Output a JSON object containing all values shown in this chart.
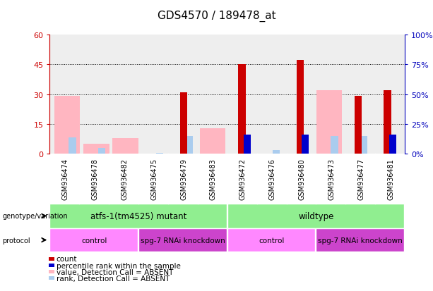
{
  "title": "GDS4570 / 189478_at",
  "samples": [
    "GSM936474",
    "GSM936478",
    "GSM936482",
    "GSM936475",
    "GSM936479",
    "GSM936483",
    "GSM936472",
    "GSM936476",
    "GSM936480",
    "GSM936473",
    "GSM936477",
    "GSM936481"
  ],
  "count_red": [
    0,
    0,
    0,
    0,
    31,
    0,
    45,
    0,
    47,
    0,
    29,
    32
  ],
  "count_pink": [
    29,
    5,
    8,
    0,
    0,
    13,
    0,
    0,
    0,
    32,
    0,
    0
  ],
  "rank_blue": [
    0,
    0,
    0,
    0,
    0,
    0,
    16,
    0,
    16,
    0,
    0,
    16
  ],
  "rank_lightblue": [
    14,
    5,
    0,
    1,
    15,
    0,
    0,
    3,
    16,
    15,
    15,
    0
  ],
  "ylim_left": [
    0,
    60
  ],
  "ylim_right": [
    0,
    100
  ],
  "yticks_left": [
    0,
    15,
    30,
    45,
    60
  ],
  "yticks_right": [
    0,
    25,
    50,
    75,
    100
  ],
  "ytick_labels_left": [
    "0",
    "15",
    "30",
    "45",
    "60"
  ],
  "ytick_labels_right": [
    "0%",
    "25%",
    "50%",
    "75%",
    "100%"
  ],
  "genotype_groups": [
    {
      "label": "atfs-1(tm4525) mutant",
      "start": 0,
      "end": 6,
      "color": "#90EE90"
    },
    {
      "label": "wildtype",
      "start": 6,
      "end": 12,
      "color": "#90EE90"
    }
  ],
  "protocol_groups": [
    {
      "label": "control",
      "start": 0,
      "end": 3,
      "color": "#FF88FF"
    },
    {
      "label": "spg-7 RNAi knockdown",
      "start": 3,
      "end": 6,
      "color": "#CC44CC"
    },
    {
      "label": "control",
      "start": 6,
      "end": 9,
      "color": "#FF88FF"
    },
    {
      "label": "spg-7 RNAi knockdown",
      "start": 9,
      "end": 12,
      "color": "#CC44CC"
    }
  ],
  "legend_items": [
    {
      "label": "count",
      "color": "#CC0000"
    },
    {
      "label": "percentile rank within the sample",
      "color": "#0000CC"
    },
    {
      "label": "value, Detection Call = ABSENT",
      "color": "#FFB6C1"
    },
    {
      "label": "rank, Detection Call = ABSENT",
      "color": "#AACCEE"
    }
  ],
  "left_axis_color": "#CC0000",
  "right_axis_color": "#0000BB",
  "bg_color": "#FFFFFF",
  "plot_bg": "#EEEEEE",
  "xtick_bg": "#CCCCCC"
}
